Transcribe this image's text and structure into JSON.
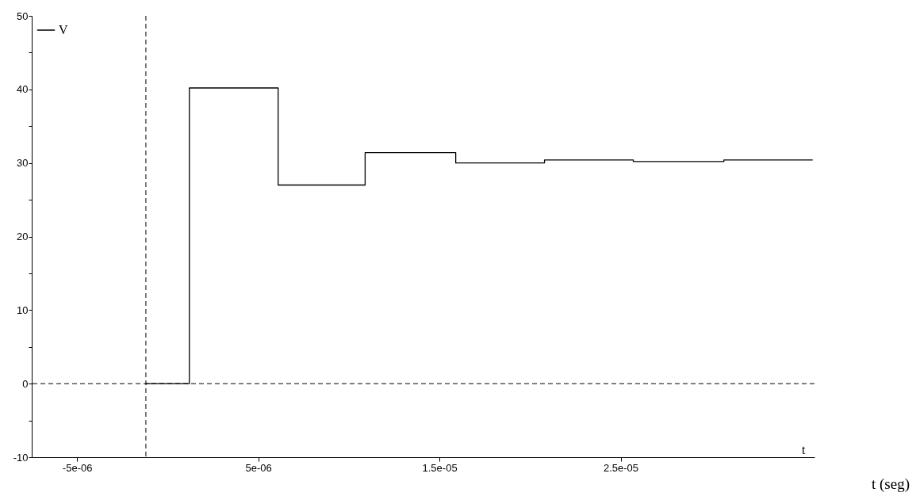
{
  "chart_data": {
    "type": "step",
    "xlabel": "t",
    "annotations": [
      "t (seg)"
    ],
    "series": [
      {
        "name": "V",
        "color": "#000000",
        "x": [
          -1.2e-06,
          1.2e-06,
          6.1e-06,
          1.09e-05,
          1.59e-05,
          2.08e-05,
          2.57e-05,
          3.07e-05,
          3.56e-05
        ],
        "values": [
          0,
          40.2,
          27,
          31.4,
          30,
          30.4,
          30.2,
          30.4,
          30.4
        ]
      }
    ],
    "xlim": [
      -7.5e-06,
      3.57e-05
    ],
    "xticks": [
      {
        "value": -5e-06,
        "label": "-5e-06"
      },
      {
        "value": 5e-06,
        "label": "5e-06"
      },
      {
        "value": 1.5e-05,
        "label": "1.5e-05"
      },
      {
        "value": 2.5e-05,
        "label": "2.5e-05"
      }
    ],
    "ylim": [
      -10,
      50
    ],
    "yticks": [
      -10,
      {
        "value": -5,
        "label": null
      },
      0,
      {
        "value": 5,
        "label": null
      },
      10,
      {
        "value": 15,
        "label": null
      },
      20,
      {
        "value": 25,
        "label": null
      },
      30,
      {
        "value": 35,
        "label": null
      },
      40,
      {
        "value": 45,
        "label": null
      },
      50
    ],
    "ref_lines": [
      {
        "axis": "x",
        "value": -1.2e-06,
        "line_style": "dashed",
        "color": "#000000"
      },
      {
        "axis": "y",
        "value": 0,
        "line_style": "dashed",
        "color": "#000000"
      }
    ],
    "grid": false,
    "legend": "top left",
    "line_style": "solid",
    "marker": "none"
  }
}
